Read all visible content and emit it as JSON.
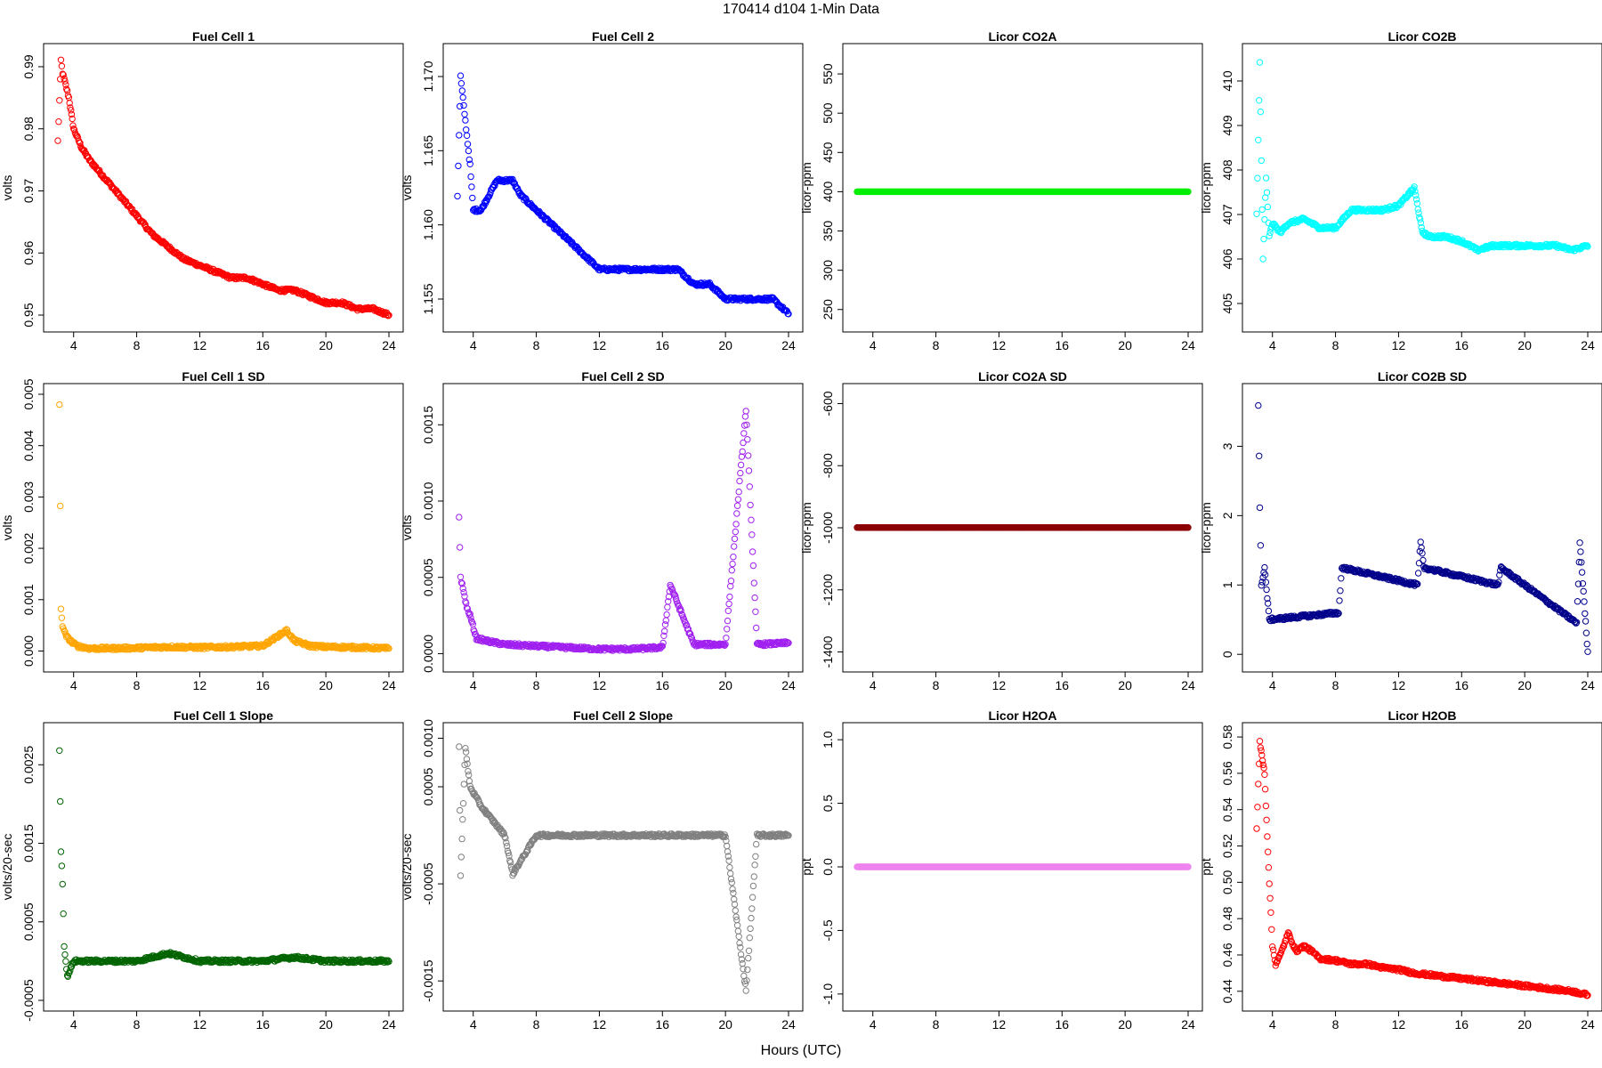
{
  "title": "170414   d104   1-Min Data",
  "xlabel": "Hours (UTC)",
  "chart_data": [
    {
      "type": "scatter",
      "title": "Fuel Cell 1",
      "ylabel": "volts",
      "color": "#ff0000",
      "xlim": [
        3,
        24
      ],
      "ylim": [
        0.949,
        0.992
      ],
      "xticks": [
        4,
        8,
        12,
        16,
        20,
        24
      ],
      "yticks": [
        0.95,
        0.96,
        0.97,
        0.98,
        0.99
      ],
      "series": [
        {
          "x": [
            3,
            3.2,
            3.3,
            3.5,
            3.7,
            4,
            4.5,
            5,
            6,
            7,
            8,
            9,
            10,
            11,
            12,
            13,
            14,
            15,
            16,
            17,
            18,
            19,
            20,
            21,
            22,
            23,
            24
          ],
          "y": [
            0.978,
            0.991,
            0.989,
            0.987,
            0.985,
            0.98,
            0.977,
            0.975,
            0.972,
            0.969,
            0.966,
            0.963,
            0.961,
            0.959,
            0.958,
            0.957,
            0.956,
            0.956,
            0.955,
            0.954,
            0.954,
            0.953,
            0.952,
            0.952,
            0.951,
            0.951,
            0.95
          ]
        }
      ]
    },
    {
      "type": "scatter",
      "title": "Fuel Cell 2",
      "ylabel": "volts",
      "color": "#0000ff",
      "xlim": [
        3,
        24
      ],
      "ylim": [
        1.1535,
        1.1715
      ],
      "xticks": [
        4,
        8,
        12,
        16,
        20,
        24
      ],
      "yticks": [
        1.155,
        1.16,
        1.165,
        1.17
      ],
      "series": [
        {
          "x": [
            3,
            3.2,
            3.4,
            3.6,
            3.8,
            4,
            4.5,
            5,
            5.5,
            6,
            6.5,
            7,
            8,
            9,
            10,
            11,
            12,
            13,
            14,
            15,
            16,
            17,
            18,
            19,
            20,
            21,
            22,
            23,
            24
          ],
          "y": [
            1.162,
            1.17,
            1.168,
            1.166,
            1.164,
            1.161,
            1.161,
            1.162,
            1.163,
            1.163,
            1.163,
            1.162,
            1.161,
            1.16,
            1.159,
            1.158,
            1.157,
            1.157,
            1.157,
            1.157,
            1.157,
            1.157,
            1.156,
            1.156,
            1.155,
            1.155,
            1.155,
            1.155,
            1.154
          ]
        }
      ]
    },
    {
      "type": "scatter",
      "title": "Licor CO2A",
      "ylabel": "licor-ppm",
      "color": "#00ee00",
      "xlim": [
        3,
        24
      ],
      "ylim": [
        235,
        575
      ],
      "xticks": [
        4,
        8,
        12,
        16,
        20,
        24
      ],
      "yticks": [
        250,
        300,
        350,
        400,
        450,
        500,
        550
      ],
      "series": [
        {
          "x": [
            3,
            24
          ],
          "y": [
            400,
            400
          ]
        }
      ]
    },
    {
      "type": "scatter",
      "title": "Licor CO2B",
      "ylabel": "licor-ppm",
      "color": "#00ffff",
      "xlim": [
        3,
        24
      ],
      "ylim": [
        404.6,
        410.6
      ],
      "xticks": [
        4,
        8,
        12,
        16,
        20,
        24
      ],
      "yticks": [
        405,
        406,
        407,
        408,
        409,
        410
      ],
      "series": [
        {
          "x": [
            3,
            3.2,
            3.4,
            3.6,
            3.8,
            4,
            4.5,
            5,
            6,
            7,
            8,
            9,
            10,
            11,
            12,
            13,
            13.5,
            14,
            15,
            16,
            17,
            18,
            19,
            20,
            21,
            22,
            23,
            24
          ],
          "y": [
            407,
            410.4,
            406,
            407.8,
            406.5,
            406.8,
            406.6,
            406.8,
            406.9,
            406.7,
            406.7,
            407.1,
            407.1,
            407.1,
            407.2,
            407.6,
            406.6,
            406.5,
            406.5,
            406.4,
            406.2,
            406.3,
            406.3,
            406.3,
            406.3,
            406.3,
            406.2,
            406.3
          ]
        }
      ]
    },
    {
      "type": "scatter",
      "title": "Fuel Cell 1 SD",
      "ylabel": "volts",
      "color": "#ffa500",
      "xlim": [
        3,
        24
      ],
      "ylim": [
        -0.0002,
        0.005
      ],
      "xticks": [
        4,
        8,
        12,
        16,
        20,
        24
      ],
      "yticks": [
        0,
        0.001,
        0.002,
        0.003,
        0.004,
        0.005
      ],
      "series": [
        {
          "x": [
            3.1,
            3.2,
            3.3,
            3.5,
            3.8,
            4.2,
            5,
            6,
            8,
            10,
            12,
            14,
            16,
            16.5,
            17,
            17.5,
            18,
            19,
            20,
            22,
            24
          ],
          "y": [
            0.0048,
            0.0008,
            0.0005,
            0.0003,
            0.0002,
            0.0001,
            5e-05,
            5e-05,
            6e-05,
            8e-05,
            7e-05,
            8e-05,
            0.0001,
            0.0002,
            0.0003,
            0.0004,
            0.0002,
            0.0001,
            8e-05,
            7e-05,
            5e-05
          ]
        }
      ]
    },
    {
      "type": "scatter",
      "title": "Fuel Cell 2 SD",
      "ylabel": "volts",
      "color": "#a020f0",
      "xlim": [
        3,
        24
      ],
      "ylim": [
        -5e-05,
        0.0017
      ],
      "xticks": [
        4,
        8,
        12,
        16,
        20,
        24
      ],
      "yticks": [
        0,
        0.0005,
        0.001,
        0.0015
      ],
      "series": [
        {
          "x": [
            3.1,
            3.2,
            3.4,
            3.6,
            3.8,
            4.2,
            5,
            6,
            8,
            10,
            12,
            14,
            16,
            16.5,
            18,
            20,
            21.3,
            22,
            24
          ],
          "y": [
            0.0009,
            0.0005,
            0.0004,
            0.0003,
            0.00025,
            0.0001,
            8e-05,
            6e-05,
            5e-05,
            4e-05,
            3e-05,
            3e-05,
            4e-05,
            0.00045,
            6e-05,
            6e-05,
            0.0016,
            6e-05,
            7e-05
          ]
        }
      ]
    },
    {
      "type": "scatter",
      "title": "Licor CO2A SD",
      "ylabel": "licor-ppm",
      "color": "#8b0000",
      "xlim": [
        3,
        24
      ],
      "ylim": [
        -1430,
        -570
      ],
      "xticks": [
        4,
        8,
        12,
        16,
        20,
        24
      ],
      "yticks": [
        -1400,
        -1200,
        -1000,
        -800,
        -600
      ],
      "series": [
        {
          "x": [
            3,
            24
          ],
          "y": [
            -999,
            -999
          ]
        }
      ]
    },
    {
      "type": "scatter",
      "title": "Licor CO2B SD",
      "ylabel": "licor-ppm",
      "color": "#00008b",
      "xlim": [
        3,
        24
      ],
      "ylim": [
        -0.1,
        3.75
      ],
      "xticks": [
        4,
        8,
        12,
        16,
        20,
        24
      ],
      "yticks": [
        0,
        1,
        2,
        3
      ],
      "series": [
        {
          "x": [
            3.1,
            3.2,
            3.3,
            3.5,
            3.8,
            8.2,
            8.4,
            13.2,
            13.4,
            13.6,
            18.3,
            18.5,
            23.3,
            23.5,
            24
          ],
          "y": [
            3.6,
            2.1,
            1,
            1.25,
            0.5,
            0.6,
            1.25,
            1,
            1.62,
            1.25,
            1,
            1.25,
            0.45,
            1.62,
            0.02
          ]
        }
      ]
    },
    {
      "type": "scatter",
      "title": "Fuel Cell 1 Slope",
      "ylabel": "volts/20-sec",
      "color": "#006400",
      "xlim": [
        3,
        24
      ],
      "ylim": [
        -0.0005,
        0.0029
      ],
      "xticks": [
        4,
        8,
        12,
        16,
        20,
        24
      ],
      "yticks": [
        -0.0005,
        0.0005,
        0.0015,
        0.0025
      ],
      "series": [
        {
          "x": [
            3.1,
            3.2,
            3.3,
            3.4,
            3.6,
            4,
            5,
            6,
            8,
            10,
            12,
            14,
            16,
            18,
            20,
            22,
            24
          ],
          "y": [
            0.0027,
            0.0014,
            0.001,
            0.0002,
            -0.0002,
            0,
            0,
            0,
            0,
            0.0001,
            0,
            0,
            0,
            5e-05,
            0,
            0,
            0
          ]
        }
      ]
    },
    {
      "type": "scatter",
      "title": "Fuel Cell 2 Slope",
      "ylabel": "volts/20-sec",
      "color": "#808080",
      "xlim": [
        3,
        24
      ],
      "ylim": [
        -0.0017,
        0.00105
      ],
      "xticks": [
        4,
        8,
        12,
        16,
        20,
        24
      ],
      "yticks": [
        -0.0015,
        -0.0005,
        0.0005,
        0.001
      ],
      "series": [
        {
          "x": [
            3.1,
            3.2,
            3.5,
            3.8,
            4.5,
            5,
            6,
            6.5,
            8,
            10,
            12,
            14,
            16,
            18,
            20,
            21.3,
            22,
            24
          ],
          "y": [
            0.0009,
            -0.0004,
            0.0009,
            0.0005,
            0.0003,
            0.0002,
            0,
            -0.0004,
            0,
            0,
            0,
            0,
            0,
            0,
            0,
            -0.0016,
            0,
            0
          ]
        }
      ]
    },
    {
      "type": "scatter",
      "title": "Licor H2OA",
      "ylabel": "ppt",
      "color": "#ee82ee",
      "xlim": [
        3,
        24
      ],
      "ylim": [
        -1.05,
        1.05
      ],
      "xticks": [
        4,
        8,
        12,
        16,
        20,
        24
      ],
      "yticks": [
        -1,
        -0.5,
        0,
        0.5,
        1
      ],
      "series": [
        {
          "x": [
            3,
            24
          ],
          "y": [
            0,
            0
          ]
        }
      ]
    },
    {
      "type": "scatter",
      "title": "Licor H2OB",
      "ylabel": "ppt",
      "color": "#ff0000",
      "xlim": [
        3,
        24
      ],
      "ylim": [
        0.435,
        0.582
      ],
      "xticks": [
        4,
        8,
        12,
        16,
        20,
        24
      ],
      "yticks": [
        0.44,
        0.46,
        0.48,
        0.5,
        0.52,
        0.54,
        0.56,
        0.58
      ],
      "series": [
        {
          "x": [
            3,
            3.2,
            3.5,
            3.8,
            4,
            4.2,
            4.5,
            5,
            5.5,
            6,
            6.5,
            7,
            8,
            9,
            10,
            11,
            12,
            13,
            14,
            15,
            16,
            17,
            18,
            19,
            20,
            21,
            22,
            23,
            24
          ],
          "y": [
            0.53,
            0.577,
            0.56,
            0.5,
            0.465,
            0.455,
            0.46,
            0.472,
            0.462,
            0.465,
            0.462,
            0.458,
            0.457,
            0.455,
            0.455,
            0.453,
            0.452,
            0.45,
            0.449,
            0.448,
            0.447,
            0.446,
            0.445,
            0.444,
            0.443,
            0.442,
            0.441,
            0.44,
            0.438
          ]
        }
      ]
    }
  ]
}
